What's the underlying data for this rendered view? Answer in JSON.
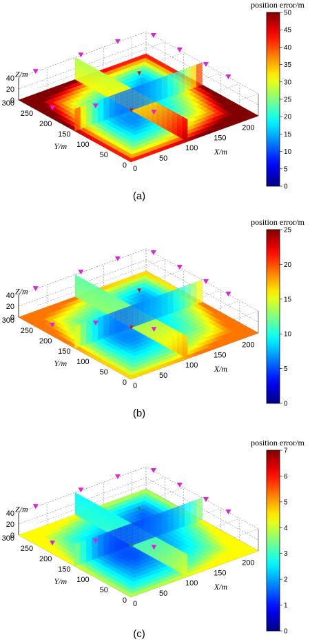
{
  "chart_data": [
    {
      "type": "heatmap",
      "panel_label": "(a)",
      "colorbar": {
        "title": "position error/m",
        "range": [
          0,
          50
        ],
        "ticks": [
          0,
          5,
          10,
          15,
          20,
          25,
          30,
          35,
          40,
          45,
          50
        ]
      },
      "axes": {
        "x": {
          "label": "X/m",
          "ticks": [
            0,
            50,
            100,
            150,
            200
          ]
        },
        "y": {
          "label": "Y/m",
          "ticks": [
            0,
            50,
            100,
            150,
            200,
            250,
            300
          ]
        },
        "z": {
          "label": "Z/m",
          "ticks": [
            0,
            20,
            40
          ]
        }
      },
      "anchor_marker": "magenta-triangle",
      "target_marker": "red-triangle",
      "grid": true,
      "value_peak": 50,
      "value_valley": 12
    },
    {
      "type": "heatmap",
      "panel_label": "(b)",
      "colorbar": {
        "title": "position error/m",
        "range": [
          0,
          25
        ],
        "ticks": [
          0,
          5,
          10,
          15,
          20,
          25
        ]
      },
      "axes": {
        "x": {
          "label": "X/m",
          "ticks": [
            0,
            50,
            100,
            150,
            200
          ]
        },
        "y": {
          "label": "Y/m",
          "ticks": [
            0,
            50,
            100,
            150,
            200,
            250,
            300
          ]
        },
        "z": {
          "label": "Z/m",
          "ticks": [
            0,
            20,
            40
          ]
        }
      },
      "anchor_marker": "magenta-triangle",
      "target_marker": "red-triangle",
      "grid": true,
      "value_peak": 19,
      "value_valley": 7
    },
    {
      "type": "heatmap",
      "panel_label": "(c)",
      "colorbar": {
        "title": "position error/m",
        "range": [
          0,
          7
        ],
        "ticks": [
          0,
          1,
          2,
          3,
          4,
          5,
          6,
          7
        ]
      },
      "axes": {
        "x": {
          "label": "X/m",
          "ticks": [
            0,
            50,
            100,
            150,
            200
          ]
        },
        "y": {
          "label": "Y/m",
          "ticks": [
            0,
            50,
            100,
            150,
            200,
            250,
            300
          ]
        },
        "z": {
          "label": "Z/m",
          "ticks": [
            0,
            20,
            40
          ]
        }
      },
      "anchor_marker": "magenta-triangle",
      "target_marker": "green-cross",
      "grid": true,
      "value_peak": 4.4,
      "value_valley": 1.5
    }
  ],
  "colors": {
    "anchor": "#e020e0",
    "target_a": "#d01818",
    "target_c": "#2b8a2b",
    "grid": "#8a8a8a"
  }
}
